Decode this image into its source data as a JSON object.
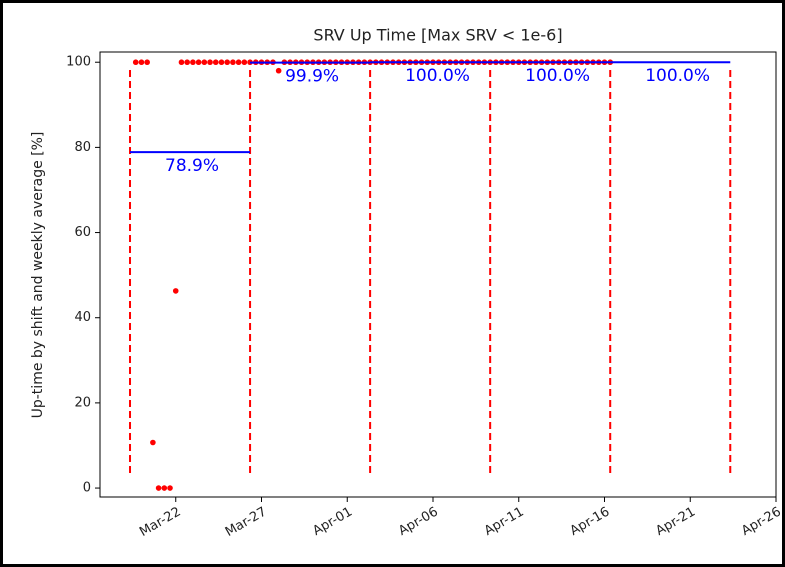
{
  "chart_data": {
    "type": "scatter",
    "title": "SRV Up Time [Max SRV < 1e-6]",
    "y_label": "Up-time by shift and weekly average [%]",
    "xlim": [
      "03-17 14:00",
      "04-26 00:00"
    ],
    "xticks": [
      {
        "value": "03-22 00:00",
        "label": "Mar-22"
      },
      {
        "value": "03-27 00:00",
        "label": "Mar-27"
      },
      {
        "value": "04-01 00:00",
        "label": "Apr-01"
      },
      {
        "value": "04-06 00:00",
        "label": "Apr-06"
      },
      {
        "value": "04-11 00:00",
        "label": "Apr-11"
      },
      {
        "value": "04-16 00:00",
        "label": "Apr-16"
      },
      {
        "value": "04-21 00:00",
        "label": "Apr-21"
      },
      {
        "value": "04-26 00:00",
        "label": "Apr-26"
      }
    ],
    "ylim": [
      -2.1,
      102.4
    ],
    "yticks": [
      0,
      20,
      40,
      60,
      80,
      100
    ],
    "grid": false,
    "series": [
      {
        "color": "#ff0000",
        "x": [
          "03-19 16:00",
          "03-20 00:00",
          "03-20 08:00",
          "03-20 16:00",
          "03-21 00:00",
          "03-21 08:00",
          "03-21 16:00",
          "03-22 00:00",
          "03-22 08:00",
          "03-22 16:00",
          "03-23 00:00",
          "03-23 08:00",
          "03-23 16:00",
          "03-24 00:00",
          "03-24 08:00",
          "03-24 16:00",
          "03-25 00:00",
          "03-25 08:00",
          "03-25 16:00",
          "03-26 00:00",
          "03-26 08:00",
          "03-26 16:00",
          "03-27 00:00",
          "03-27 08:00",
          "03-27 16:00",
          "03-28 00:00",
          "03-28 08:00",
          "03-28 16:00",
          "03-29 00:00",
          "03-29 08:00",
          "03-29 16:00",
          "03-30 00:00",
          "03-30 08:00",
          "03-30 16:00",
          "03-31 00:00",
          "03-31 08:00",
          "03-31 16:00",
          "04-01 00:00",
          "04-01 08:00",
          "04-01 16:00",
          "04-02 00:00",
          "04-02 08:00",
          "04-02 16:00",
          "04-03 00:00",
          "04-03 08:00",
          "04-03 16:00",
          "04-04 00:00",
          "04-04 08:00",
          "04-04 16:00",
          "04-05 00:00",
          "04-05 08:00",
          "04-05 16:00",
          "04-06 00:00",
          "04-06 08:00",
          "04-06 16:00",
          "04-07 00:00",
          "04-07 08:00",
          "04-07 16:00",
          "04-08 00:00",
          "04-08 08:00",
          "04-08 16:00",
          "04-09 00:00",
          "04-09 08:00",
          "04-09 16:00",
          "04-10 00:00",
          "04-10 08:00",
          "04-10 16:00",
          "04-11 00:00",
          "04-11 08:00",
          "04-11 16:00",
          "04-12 00:00",
          "04-12 08:00",
          "04-12 16:00",
          "04-13 00:00",
          "04-13 08:00",
          "04-13 16:00",
          "04-14 00:00",
          "04-14 08:00",
          "04-14 16:00",
          "04-15 00:00",
          "04-15 08:00",
          "04-15 16:00",
          "04-16 00:00",
          "04-16 08:00"
        ],
        "values": [
          100,
          100,
          100,
          10.7,
          0,
          0,
          0,
          46.3,
          100,
          100,
          100,
          100,
          100,
          100,
          100,
          100,
          100,
          100,
          100,
          100,
          100,
          100,
          100,
          100,
          100,
          98,
          100,
          100,
          100,
          100,
          100,
          100,
          100,
          100,
          100,
          100,
          100,
          100,
          100,
          100,
          100,
          100,
          100,
          100,
          100,
          100,
          100,
          100,
          100,
          100,
          100,
          100,
          100,
          100,
          100,
          100,
          100,
          100,
          100,
          100,
          100,
          100,
          100,
          100,
          100,
          100,
          100,
          100,
          100,
          100,
          100,
          100,
          100,
          100,
          100,
          100,
          100,
          100,
          100,
          100,
          100,
          100,
          100,
          100
        ]
      }
    ],
    "averages": {
      "color": "#0000ff",
      "divider_color": "#ff0000",
      "bounds": [
        "03-19 08:00",
        "03-26 08:00",
        "04-02 08:00",
        "04-09 08:00",
        "04-16 08:00",
        "04-23 08:00"
      ],
      "values": [
        78.9,
        99.9,
        100,
        100,
        100
      ],
      "value_labels": [
        "78.9%",
        "99.9%",
        "100.0%",
        "100.0%",
        "100.0%"
      ]
    }
  }
}
